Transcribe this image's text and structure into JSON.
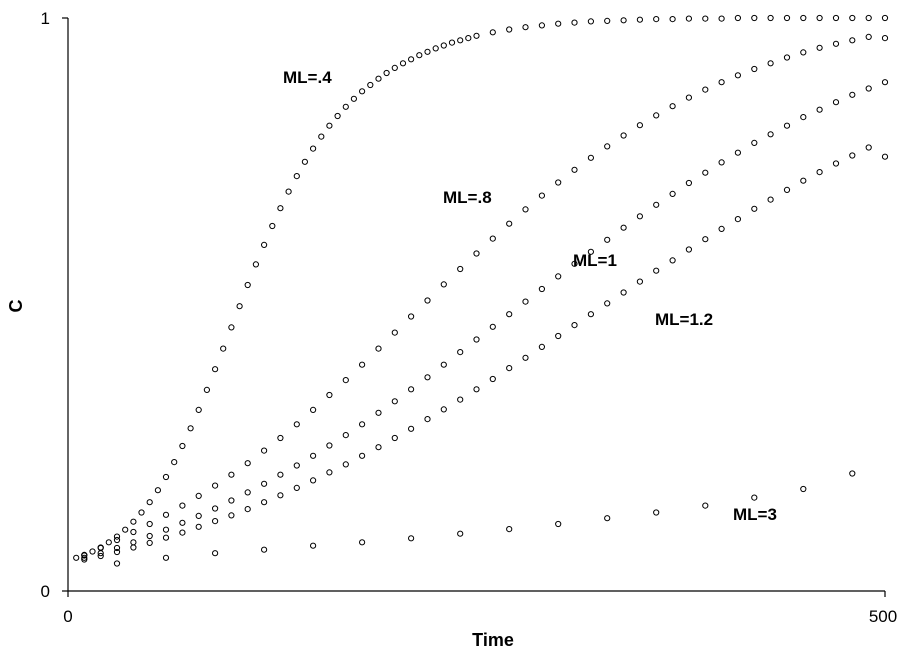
{
  "chart_data": {
    "type": "scatter",
    "title": "",
    "xlabel": "Time",
    "ylabel": "C",
    "xlim": [
      0,
      500
    ],
    "ylim": [
      0,
      1
    ],
    "x_ticks": [
      "0",
      "500"
    ],
    "y_ticks": [
      "0",
      "1"
    ],
    "grid": false,
    "marker": "open-circle",
    "series": [
      {
        "name": "ML=.4",
        "x": [
          5,
          10,
          15,
          20,
          25,
          30,
          35,
          40,
          45,
          50,
          55,
          60,
          65,
          70,
          75,
          80,
          85,
          90,
          95,
          100,
          105,
          110,
          115,
          120,
          125,
          130,
          135,
          140,
          145,
          150,
          155,
          160,
          165,
          170,
          175,
          180,
          185,
          190,
          195,
          200,
          205,
          210,
          215,
          220,
          225,
          230,
          235,
          240,
          245,
          250,
          260,
          270,
          280,
          290,
          300,
          310,
          320,
          330,
          340,
          350,
          360,
          370,
          380,
          390,
          400,
          410,
          420,
          430,
          440,
          450,
          460,
          470,
          480,
          490,
          500
        ],
        "y": [
          0.058,
          0.063,
          0.069,
          0.076,
          0.085,
          0.095,
          0.107,
          0.121,
          0.137,
          0.155,
          0.176,
          0.199,
          0.225,
          0.253,
          0.284,
          0.316,
          0.351,
          0.387,
          0.423,
          0.46,
          0.497,
          0.534,
          0.57,
          0.604,
          0.637,
          0.668,
          0.697,
          0.724,
          0.749,
          0.772,
          0.793,
          0.812,
          0.829,
          0.845,
          0.859,
          0.872,
          0.883,
          0.894,
          0.904,
          0.913,
          0.921,
          0.928,
          0.935,
          0.941,
          0.947,
          0.952,
          0.957,
          0.961,
          0.965,
          0.969,
          0.975,
          0.98,
          0.984,
          0.987,
          0.99,
          0.992,
          0.994,
          0.995,
          0.996,
          0.997,
          0.998,
          0.998,
          0.999,
          0.999,
          0.999,
          1.0,
          1.0,
          1.0,
          1.0,
          1.0,
          1.0,
          1.0,
          1.0,
          1.0,
          1.0
        ]
      },
      {
        "name": "ML=.8",
        "x": [
          10,
          20,
          30,
          40,
          50,
          60,
          70,
          80,
          90,
          100,
          110,
          120,
          130,
          140,
          150,
          160,
          170,
          180,
          190,
          200,
          210,
          220,
          230,
          240,
          250,
          260,
          270,
          280,
          290,
          300,
          310,
          320,
          330,
          340,
          350,
          360,
          370,
          380,
          390,
          400,
          410,
          420,
          430,
          440,
          450,
          460,
          470,
          480,
          490,
          500
        ],
        "y": [
          0.062,
          0.075,
          0.089,
          0.103,
          0.117,
          0.133,
          0.149,
          0.166,
          0.184,
          0.203,
          0.223,
          0.245,
          0.267,
          0.291,
          0.316,
          0.342,
          0.368,
          0.395,
          0.423,
          0.451,
          0.479,
          0.507,
          0.535,
          0.562,
          0.589,
          0.615,
          0.641,
          0.666,
          0.69,
          0.713,
          0.735,
          0.756,
          0.776,
          0.795,
          0.813,
          0.83,
          0.846,
          0.861,
          0.875,
          0.888,
          0.9,
          0.911,
          0.921,
          0.931,
          0.94,
          0.948,
          0.955,
          0.961,
          0.967,
          0.965
        ]
      },
      {
        "name": "ML=1",
        "x": [
          10,
          20,
          30,
          40,
          50,
          60,
          70,
          80,
          90,
          100,
          110,
          120,
          130,
          140,
          150,
          160,
          170,
          180,
          190,
          200,
          210,
          220,
          230,
          240,
          250,
          260,
          270,
          280,
          290,
          300,
          310,
          320,
          330,
          340,
          350,
          360,
          370,
          380,
          390,
          400,
          410,
          420,
          430,
          440,
          450,
          460,
          470,
          480,
          490,
          500
        ],
        "y": [
          0.058,
          0.066,
          0.075,
          0.085,
          0.096,
          0.107,
          0.119,
          0.131,
          0.144,
          0.158,
          0.172,
          0.187,
          0.203,
          0.219,
          0.236,
          0.254,
          0.272,
          0.291,
          0.311,
          0.331,
          0.352,
          0.373,
          0.395,
          0.417,
          0.439,
          0.461,
          0.483,
          0.505,
          0.527,
          0.549,
          0.571,
          0.592,
          0.613,
          0.634,
          0.654,
          0.674,
          0.693,
          0.712,
          0.73,
          0.748,
          0.765,
          0.782,
          0.797,
          0.812,
          0.827,
          0.84,
          0.853,
          0.866,
          0.877,
          0.888
        ]
      },
      {
        "name": "ML=1.2",
        "x": [
          10,
          20,
          30,
          40,
          50,
          60,
          70,
          80,
          90,
          100,
          110,
          120,
          130,
          140,
          150,
          160,
          170,
          180,
          190,
          200,
          210,
          220,
          230,
          240,
          250,
          260,
          270,
          280,
          290,
          300,
          310,
          320,
          330,
          340,
          350,
          360,
          370,
          380,
          390,
          400,
          410,
          420,
          430,
          440,
          450,
          460,
          470,
          480,
          490,
          500
        ],
        "y": [
          0.055,
          0.061,
          0.068,
          0.076,
          0.084,
          0.093,
          0.102,
          0.112,
          0.122,
          0.132,
          0.143,
          0.155,
          0.167,
          0.18,
          0.193,
          0.207,
          0.221,
          0.236,
          0.251,
          0.267,
          0.283,
          0.3,
          0.317,
          0.334,
          0.352,
          0.37,
          0.389,
          0.407,
          0.426,
          0.445,
          0.464,
          0.483,
          0.502,
          0.521,
          0.54,
          0.559,
          0.577,
          0.596,
          0.614,
          0.632,
          0.649,
          0.667,
          0.683,
          0.7,
          0.716,
          0.731,
          0.746,
          0.76,
          0.774,
          0.758
        ]
      },
      {
        "name": "ML=3",
        "x": [
          30,
          60,
          90,
          120,
          150,
          180,
          210,
          240,
          270,
          300,
          330,
          360,
          390,
          420,
          450,
          480
        ],
        "y": [
          0.048,
          0.058,
          0.066,
          0.072,
          0.079,
          0.085,
          0.092,
          0.1,
          0.108,
          0.117,
          0.127,
          0.137,
          0.149,
          0.163,
          0.178,
          0.205
        ]
      }
    ],
    "annotations": [
      {
        "text": "ML=.4",
        "series": 0
      },
      {
        "text": "ML=.8",
        "series": 1
      },
      {
        "text": "ML=1",
        "series": 2
      },
      {
        "text": "ML=1.2",
        "series": 3
      },
      {
        "text": "ML=3",
        "series": 4
      }
    ]
  }
}
